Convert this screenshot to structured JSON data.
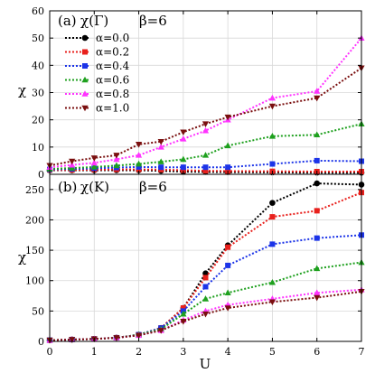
{
  "chart_data": [
    {
      "type": "line",
      "panel_label": "(a)",
      "title": "χ(Γ)",
      "beta_label": "β=6",
      "ylabel": "χ",
      "xlabel": "",
      "ylim": [
        0,
        60
      ],
      "yticks": [
        0,
        10,
        20,
        30,
        40,
        50,
        60
      ],
      "xlim": [
        0,
        7
      ],
      "legend": "top-left",
      "series": [
        {
          "name": "α=0.0",
          "color": "#000000",
          "marker": "circle",
          "x": [
            0,
            0.5,
            1,
            1.5,
            2,
            2.5,
            3,
            3.5,
            4,
            5,
            6,
            7
          ],
          "y": [
            1.5,
            1.5,
            1.5,
            1.5,
            1.5,
            1.3,
            1.0,
            0.9,
            0.8,
            0.7,
            0.6,
            0.6
          ]
        },
        {
          "name": "α=0.2",
          "color": "#e8201c",
          "marker": "square",
          "x": [
            0,
            0.5,
            1,
            1.5,
            2,
            2.5,
            3,
            3.5,
            4,
            5,
            6,
            7
          ],
          "y": [
            1.6,
            1.6,
            1.7,
            1.8,
            1.8,
            1.7,
            1.5,
            1.3,
            1.2,
            1.1,
            1.0,
            1.0
          ]
        },
        {
          "name": "α=0.4",
          "color": "#1c34e8",
          "marker": "square",
          "x": [
            0,
            0.5,
            1,
            1.5,
            2,
            2.5,
            3,
            3.5,
            4,
            5,
            6,
            7
          ],
          "y": [
            1.8,
            2.0,
            2.2,
            2.5,
            2.7,
            2.6,
            2.6,
            2.6,
            2.6,
            3.8,
            5.0,
            4.8
          ]
        },
        {
          "name": "α=0.6",
          "color": "#1ea01e",
          "marker": "triangle",
          "x": [
            0,
            0.5,
            1,
            1.5,
            2,
            2.5,
            3,
            3.5,
            4,
            5,
            6,
            7
          ],
          "y": [
            2.0,
            2.3,
            2.7,
            3.2,
            3.8,
            4.6,
            5.5,
            7.0,
            10.5,
            14.0,
            14.5,
            18.5
          ]
        },
        {
          "name": "α=0.8",
          "color": "#ff33ff",
          "marker": "triangle",
          "x": [
            0,
            0.5,
            1,
            1.5,
            2,
            2.5,
            3,
            3.5,
            4,
            5,
            6,
            7
          ],
          "y": [
            2.6,
            3.4,
            4.2,
            5.5,
            7.0,
            10.0,
            13.0,
            16.0,
            20.0,
            28.0,
            30.5,
            50.0
          ]
        },
        {
          "name": "α=1.0",
          "color": "#7a0f0f",
          "marker": "triangle-down",
          "x": [
            0,
            0.5,
            1,
            1.5,
            2,
            2.5,
            3,
            3.5,
            4,
            5,
            6,
            7
          ],
          "y": [
            3.2,
            4.8,
            6.0,
            7.0,
            11.0,
            12.0,
            15.5,
            18.5,
            21.0,
            25.0,
            28.0,
            39.0
          ]
        }
      ]
    },
    {
      "type": "line",
      "panel_label": "(b)",
      "title": "χ(K)",
      "beta_label": "β=6",
      "ylabel": "χ",
      "xlabel": "U",
      "ylim": [
        0,
        275
      ],
      "yticks": [
        0,
        50,
        100,
        150,
        200,
        250
      ],
      "xlim": [
        0,
        7
      ],
      "xticks": [
        0,
        1,
        2,
        3,
        4,
        5,
        6,
        7
      ],
      "series": [
        {
          "name": "α=0.0",
          "color": "#000000",
          "marker": "circle",
          "x": [
            0,
            0.5,
            1,
            1.5,
            2,
            2.5,
            3,
            3.5,
            4,
            5,
            6,
            7
          ],
          "y": [
            2,
            3,
            4,
            6,
            11,
            22,
            55,
            112,
            158,
            228,
            260,
            258
          ]
        },
        {
          "name": "α=0.2",
          "color": "#e8201c",
          "marker": "square",
          "x": [
            0,
            0.5,
            1,
            1.5,
            2,
            2.5,
            3,
            3.5,
            4,
            5,
            6,
            7
          ],
          "y": [
            2,
            3,
            4,
            6,
            11,
            22,
            55,
            105,
            155,
            205,
            215,
            245
          ]
        },
        {
          "name": "α=0.4",
          "color": "#1c34e8",
          "marker": "square",
          "x": [
            0,
            0.5,
            1,
            1.5,
            2,
            2.5,
            3,
            3.5,
            4,
            5,
            6,
            7
          ],
          "y": [
            2,
            3,
            4,
            6,
            11,
            22,
            50,
            90,
            125,
            160,
            170,
            175
          ]
        },
        {
          "name": "α=0.6",
          "color": "#1ea01e",
          "marker": "triangle",
          "x": [
            0,
            0.5,
            1,
            1.5,
            2,
            2.5,
            3,
            3.5,
            4,
            5,
            6,
            7
          ],
          "y": [
            2,
            3,
            4,
            6,
            11,
            20,
            45,
            70,
            80,
            97,
            120,
            130
          ]
        },
        {
          "name": "α=0.8",
          "color": "#ff33ff",
          "marker": "triangle",
          "x": [
            0,
            0.5,
            1,
            1.5,
            2,
            2.5,
            3,
            3.5,
            4,
            5,
            6,
            7
          ],
          "y": [
            2,
            3,
            4,
            6,
            10,
            18,
            35,
            50,
            60,
            70,
            80,
            85
          ]
        },
        {
          "name": "α=1.0",
          "color": "#7a0f0f",
          "marker": "triangle-down",
          "x": [
            0,
            0.5,
            1,
            1.5,
            2,
            2.5,
            3,
            3.5,
            4,
            5,
            6,
            7
          ],
          "y": [
            2,
            3,
            4,
            6,
            10,
            18,
            33,
            45,
            55,
            65,
            72,
            82
          ]
        }
      ]
    }
  ]
}
